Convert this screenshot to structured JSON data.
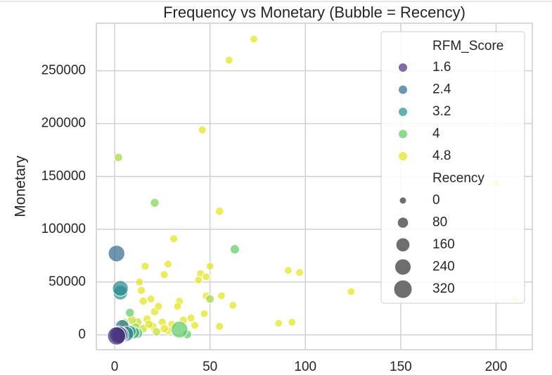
{
  "chart_data": {
    "type": "scatter",
    "title": "Frequency vs Monetary (Bubble = Recency)",
    "y_label": "Monetary",
    "xlim": [
      -9.6,
      219
    ],
    "xticks": [
      0,
      50,
      100,
      150,
      200
    ],
    "ylim": [
      -14000,
      295000
    ],
    "yticks": [
      0,
      50000,
      100000,
      150000,
      200000,
      250000
    ],
    "grid": true,
    "x": [
      73,
      60,
      46,
      55,
      31,
      50,
      16,
      28,
      91,
      97,
      45,
      48,
      26,
      13,
      44,
      124,
      210,
      200,
      14,
      48,
      56,
      15,
      19,
      34,
      62,
      86,
      93,
      55,
      47,
      21,
      23,
      33,
      40,
      17,
      25,
      30,
      20,
      15,
      28,
      22,
      18,
      12,
      36,
      26,
      9,
      42,
      7,
      5,
      11,
      63,
      21,
      2,
      38,
      8,
      50,
      12,
      10,
      8,
      4,
      6,
      3,
      3,
      34,
      1,
      3,
      2,
      1
    ],
    "values": [
      280000,
      260000,
      194000,
      117000,
      91000,
      65000,
      65000,
      67000,
      61000,
      59000,
      58000,
      55000,
      57000,
      50000,
      52000,
      41000,
      34000,
      144000,
      42000,
      37000,
      37000,
      32000,
      34000,
      32000,
      28000,
      11000,
      12000,
      8000,
      20000,
      22000,
      27000,
      27000,
      16000,
      15000,
      12000,
      10000,
      8000,
      6000,
      4000,
      3000,
      10000,
      12000,
      14000,
      6000,
      14000,
      9000,
      5000,
      11000,
      7000,
      81000,
      125000,
      168000,
      500,
      21000,
      34000,
      1500,
      2000,
      3000,
      8000,
      1000,
      40000,
      44000,
      5000,
      77000,
      0,
      0,
      -1000
    ],
    "sizes": [
      10,
      12,
      15,
      20,
      15,
      10,
      15,
      12,
      10,
      12,
      14,
      10,
      14,
      12,
      10,
      10,
      5,
      5,
      15,
      10,
      10,
      18,
      12,
      10,
      10,
      8,
      10,
      14,
      10,
      20,
      15,
      12,
      15,
      20,
      18,
      15,
      20,
      25,
      18,
      22,
      25,
      30,
      14,
      20,
      30,
      12,
      40,
      45,
      35,
      40,
      30,
      20,
      30,
      30,
      25,
      60,
      100,
      120,
      150,
      200,
      180,
      220,
      260,
      250,
      260,
      290,
      310
    ],
    "hue": [
      4.8,
      4.8,
      4.8,
      4.8,
      4.8,
      4.8,
      4.8,
      4.8,
      4.8,
      4.8,
      4.8,
      4.8,
      4.8,
      4.8,
      4.8,
      4.8,
      4.8,
      4.8,
      4.8,
      4.8,
      4.8,
      4.8,
      4.8,
      4.8,
      4.8,
      4.8,
      4.8,
      4.8,
      4.8,
      4.8,
      4.8,
      4.8,
      4.8,
      4.8,
      4.8,
      4.8,
      4.8,
      4.6,
      4.8,
      4.6,
      4.8,
      4.6,
      4.8,
      4.8,
      4.6,
      4.8,
      4.4,
      4.2,
      4.4,
      4.0,
      4.2,
      4.4,
      4.0,
      4.0,
      4.4,
      3.8,
      3.6,
      3.4,
      2.6,
      2.8,
      3.2,
      3.0,
      4.0,
      2.4,
      2.2,
      1.8,
      1.4
    ],
    "legend": {
      "hue_title": "RFM_Score",
      "hue_levels": [
        1.6,
        2.4,
        3.2,
        4.0,
        4.8
      ],
      "hue_colors": [
        "#472d7b",
        "#31688e",
        "#21918c",
        "#5ec962",
        "#e2e418"
      ],
      "size_title": "Recency",
      "size_levels": [
        0,
        80,
        160,
        240,
        320
      ],
      "size_color": "#555555",
      "location": "upper right"
    }
  }
}
